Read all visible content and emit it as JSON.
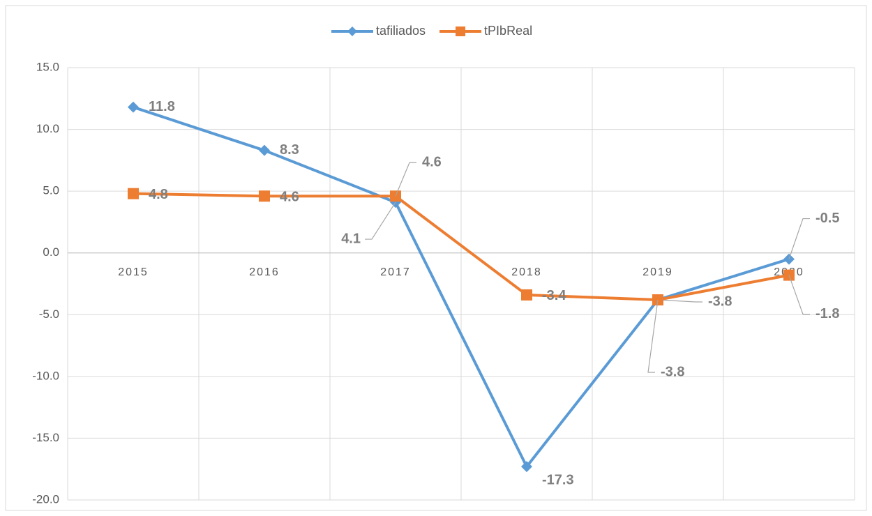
{
  "chart_data": {
    "type": "line",
    "categories": [
      "2015",
      "2016",
      "2017",
      "2018",
      "2019",
      "2020"
    ],
    "series": [
      {
        "name": "tafiliados",
        "color": "#5b9bd5",
        "marker": "diamond",
        "values": [
          11.8,
          8.3,
          4.1,
          -17.3,
          -3.8,
          -0.5
        ]
      },
      {
        "name": "tPIbReal",
        "color": "#ed7d31",
        "marker": "square",
        "values": [
          4.8,
          4.6,
          4.6,
          -3.4,
          -3.8,
          -1.8
        ]
      }
    ],
    "ylim": [
      -20,
      15
    ],
    "yticks": [
      {
        "value": -20,
        "label": "-20.0"
      },
      {
        "value": -15,
        "label": "-15.0"
      },
      {
        "value": -10,
        "label": "-10.0"
      },
      {
        "value": -5,
        "label": "-5.0"
      },
      {
        "value": 0,
        "label": "0.0"
      },
      {
        "value": 5,
        "label": "5.0"
      },
      {
        "value": 10,
        "label": "10.0"
      },
      {
        "value": 15,
        "label": "15.0"
      }
    ],
    "grid": true,
    "legend": "top"
  }
}
